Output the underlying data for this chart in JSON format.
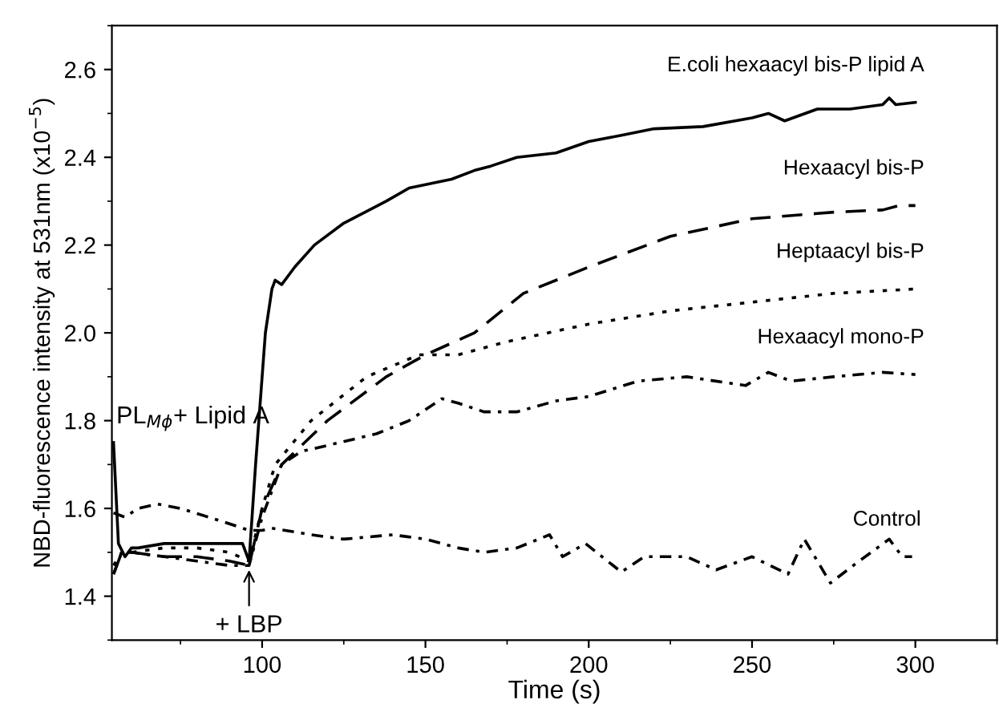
{
  "chart_data": {
    "type": "line",
    "xlabel": "Time (s)",
    "ylabel": "NBD-fluorescence intensity at 531nm (x10$^{−5}$)",
    "xlim": [
      54,
      325
    ],
    "ylim": [
      1.3,
      2.7
    ],
    "xticks": [
      100,
      150,
      200,
      250,
      300
    ],
    "yticks": [
      1.4,
      1.6,
      1.8,
      {
        "value": 2,
        "label": "2.0"
      },
      2.2,
      2.4,
      2.6
    ],
    "grid": false,
    "legend": false,
    "marker": "none",
    "series": [
      {
        "name": "E.coli hexaacyl bis-P lipid A",
        "color": "#000000",
        "line_style": "solid",
        "x": [
          54.5,
          56,
          58,
          60,
          62,
          70,
          80,
          90,
          94,
          96,
          98,
          101,
          103,
          104,
          106,
          110,
          116,
          125,
          138,
          145,
          158,
          165,
          170,
          178,
          190,
          200,
          210,
          220,
          235,
          250,
          255,
          260,
          270,
          280,
          290,
          292,
          294,
          300
        ],
        "values": [
          1.75,
          1.52,
          1.49,
          1.51,
          1.51,
          1.52,
          1.52,
          1.52,
          1.52,
          1.48,
          1.7,
          2.0,
          2.1,
          2.12,
          2.11,
          2.15,
          2.2,
          2.25,
          2.3,
          2.33,
          2.35,
          2.37,
          2.38,
          2.4,
          2.41,
          2.436,
          2.45,
          2.465,
          2.47,
          2.49,
          2.5,
          2.483,
          2.51,
          2.51,
          2.52,
          2.535,
          2.52,
          2.525
        ]
      },
      {
        "name": "Hexaacyl bis-P",
        "color": "#000000",
        "line_style": "dashed",
        "x": [
          54.5,
          57,
          60,
          70,
          80,
          90,
          96,
          100,
          106,
          120,
          138,
          150,
          165,
          180,
          200,
          225,
          250,
          275,
          290,
          295,
          300
        ],
        "values": [
          1.45,
          1.5,
          1.5,
          1.49,
          1.49,
          1.48,
          1.47,
          1.6,
          1.7,
          1.8,
          1.9,
          1.95,
          2.0,
          2.09,
          2.15,
          2.22,
          2.26,
          2.275,
          2.28,
          2.29,
          2.29
        ]
      },
      {
        "name": "Heptaacyl bis-P",
        "color": "#000000",
        "line_style": "dotted",
        "x": [
          54.5,
          57,
          60,
          70,
          80,
          90,
          96,
          100,
          104,
          115,
          132,
          148,
          160,
          175,
          200,
          225,
          250,
          275,
          300
        ],
        "values": [
          1.47,
          1.5,
          1.5,
          1.51,
          1.51,
          1.5,
          1.48,
          1.6,
          1.7,
          1.8,
          1.9,
          1.95,
          1.95,
          1.98,
          2.02,
          2.05,
          2.07,
          2.09,
          2.1
        ]
      },
      {
        "name": "Hexaacyl mono-P",
        "color": "#000000",
        "line_style": "dashdot",
        "x": [
          54.5,
          57,
          60,
          70,
          80,
          90,
          96,
          100,
          106,
          112,
          118,
          135,
          145,
          155,
          160,
          168,
          178,
          190,
          200,
          215,
          230,
          248,
          255,
          262,
          275,
          290,
          300
        ],
        "values": [
          1.45,
          1.5,
          1.5,
          1.49,
          1.48,
          1.47,
          1.47,
          1.58,
          1.7,
          1.73,
          1.74,
          1.77,
          1.8,
          1.85,
          1.84,
          1.82,
          1.82,
          1.845,
          1.855,
          1.89,
          1.9,
          1.88,
          1.91,
          1.89,
          1.9,
          1.91,
          1.905
        ]
      },
      {
        "name": "Control",
        "color": "#000000",
        "line_style": "dashdot",
        "x": [
          54.5,
          58,
          62,
          68,
          75,
          88,
          96,
          100,
          103,
          115,
          125,
          140,
          150,
          160,
          168,
          178,
          188,
          192,
          199,
          210,
          217,
          230,
          239,
          250,
          261,
          266,
          274,
          281,
          292,
          296,
          299
        ],
        "values": [
          1.59,
          1.58,
          1.6,
          1.61,
          1.6,
          1.57,
          1.55,
          1.55,
          1.555,
          1.54,
          1.53,
          1.54,
          1.53,
          1.51,
          1.5,
          1.51,
          1.54,
          1.49,
          1.52,
          1.455,
          1.49,
          1.49,
          1.46,
          1.49,
          1.45,
          1.53,
          1.43,
          1.47,
          1.53,
          1.49,
          1.49
        ]
      }
    ],
    "annotations": [
      "PL$_{Mϕ}$+ Lipid A",
      {
        "text": "+ LBP",
        "x": 96,
        "y": 1.47
      }
    ]
  }
}
